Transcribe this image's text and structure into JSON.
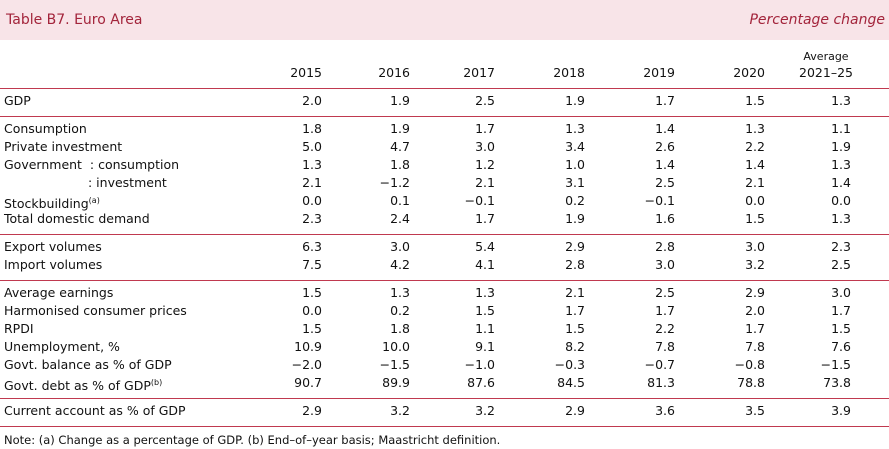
{
  "header": {
    "title": "Table B7. Euro Area",
    "subtitle": "Percentage change"
  },
  "columns": [
    [
      "2015"
    ],
    [
      "2016"
    ],
    [
      "2017"
    ],
    [
      "2018"
    ],
    [
      "2019"
    ],
    [
      "2020"
    ],
    [
      "Average",
      "2021–25"
    ]
  ],
  "groups": [
    [
      {
        "label": "GDP",
        "values": [
          "2.0",
          "1.9",
          "2.5",
          "1.9",
          "1.7",
          "1.5",
          "1.3"
        ]
      }
    ],
    [
      {
        "label": "Consumption",
        "values": [
          "1.8",
          "1.9",
          "1.7",
          "1.3",
          "1.4",
          "1.3",
          "1.1"
        ]
      },
      {
        "label": "Private investment",
        "values": [
          "5.0",
          "4.7",
          "3.0",
          "3.4",
          "2.6",
          "2.2",
          "1.9"
        ]
      },
      {
        "label": "Government  : consumption",
        "values": [
          "1.3",
          "1.8",
          "1.2",
          "1.0",
          "1.4",
          "1.4",
          "1.3"
        ]
      },
      {
        "label": ": investment",
        "indent": true,
        "values": [
          "2.1",
          "−1.2",
          "2.1",
          "3.1",
          "2.5",
          "2.1",
          "1.4"
        ]
      },
      {
        "label": "Stockbuilding",
        "sup": "(a)",
        "values": [
          "0.0",
          "0.1",
          "−0.1",
          "0.2",
          "−0.1",
          "0.0",
          "0.0"
        ]
      },
      {
        "label": "Total domestic demand",
        "values": [
          "2.3",
          "2.4",
          "1.7",
          "1.9",
          "1.6",
          "1.5",
          "1.3"
        ]
      }
    ],
    [
      {
        "label": "Export volumes",
        "values": [
          "6.3",
          "3.0",
          "5.4",
          "2.9",
          "2.8",
          "3.0",
          "2.3"
        ]
      },
      {
        "label": "Import volumes",
        "values": [
          "7.5",
          "4.2",
          "4.1",
          "2.8",
          "3.0",
          "3.2",
          "2.5"
        ]
      }
    ],
    [
      {
        "label": "Average earnings",
        "values": [
          "1.5",
          "1.3",
          "1.3",
          "2.1",
          "2.5",
          "2.9",
          "3.0"
        ]
      },
      {
        "label": "Harmonised consumer prices",
        "values": [
          "0.0",
          "0.2",
          "1.5",
          "1.7",
          "1.7",
          "2.0",
          "1.7"
        ]
      },
      {
        "label": "RPDI",
        "values": [
          "1.5",
          "1.8",
          "1.1",
          "1.5",
          "2.2",
          "1.7",
          "1.5"
        ]
      },
      {
        "label": "Unemployment, %",
        "values": [
          "10.9",
          "10.0",
          "9.1",
          "8.2",
          "7.8",
          "7.8",
          "7.6"
        ]
      },
      {
        "label": "Govt. balance as % of GDP",
        "values": [
          "−2.0",
          "−1.5",
          "−1.0",
          "−0.3",
          "−0.7",
          "−0.8",
          "−1.5"
        ]
      },
      {
        "label": "Govt. debt as % of GDP",
        "sup": "(b)",
        "values": [
          "90.7",
          "89.9",
          "87.6",
          "84.5",
          "81.3",
          "78.8",
          "73.8"
        ]
      }
    ],
    [
      {
        "label": "Current account as % of GDP",
        "values": [
          "2.9",
          "3.2",
          "3.2",
          "2.9",
          "3.6",
          "3.5",
          "3.9"
        ]
      }
    ]
  ],
  "note": "Note: (a) Change as a percentage of GDP. (b) End–of–year basis; Maastricht definition."
}
